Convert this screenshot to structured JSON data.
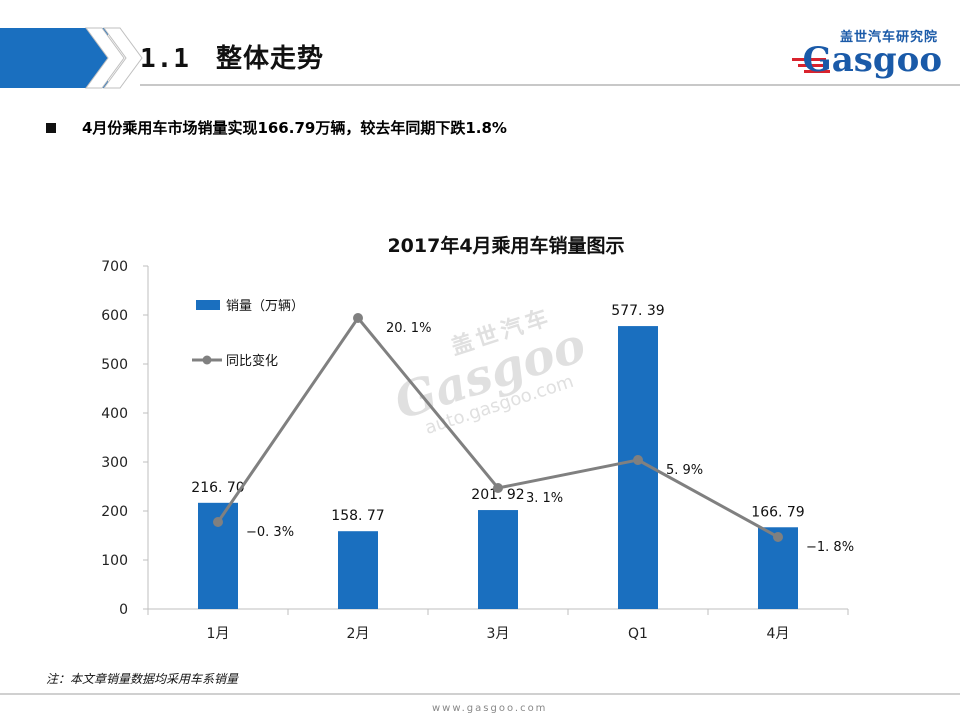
{
  "header": {
    "section_number": "1.1",
    "section_title": "整体走势",
    "logo_cn": "盖世汽车研究院",
    "logo_en": "Gasgoo"
  },
  "bullet": {
    "text": "4月份乘用车市场销量实现166.79万辆，较去年同期下跌1.8%"
  },
  "chart_data": {
    "type": "bar",
    "title": "2017年4月乘用车销量图示",
    "categories": [
      "1月",
      "2月",
      "3月",
      "Q1",
      "4月"
    ],
    "ylim": [
      0,
      700
    ],
    "yticks": [
      "0",
      "100",
      "200",
      "300",
      "400",
      "500",
      "600",
      "700"
    ],
    "grid": false,
    "legend_position": "top-left",
    "series": [
      {
        "name": "销量（万辆）",
        "type": "bar",
        "color": "#1a6fbf",
        "values": [
          216.7,
          158.77,
          201.92,
          577.39,
          166.79
        ],
        "labels": [
          "216. 70",
          "158. 77",
          "201. 92",
          "577. 39",
          "166. 79"
        ]
      },
      {
        "name": "同比变化",
        "type": "line",
        "color": "#808080",
        "values_percent": [
          -0.3,
          20.1,
          3.1,
          5.9,
          -1.8
        ],
        "labels": [
          "−0. 3%",
          "20. 1%",
          "3. 1%",
          "5. 9%",
          "−1. 8%"
        ]
      }
    ]
  },
  "watermark": {
    "cn": "盖世汽车",
    "en": "Gasgoo",
    "url": "auto.gasgoo.com"
  },
  "footnote": "注：本文章销量数据均采用车系销量",
  "footer_url": "www.gasgoo.com"
}
